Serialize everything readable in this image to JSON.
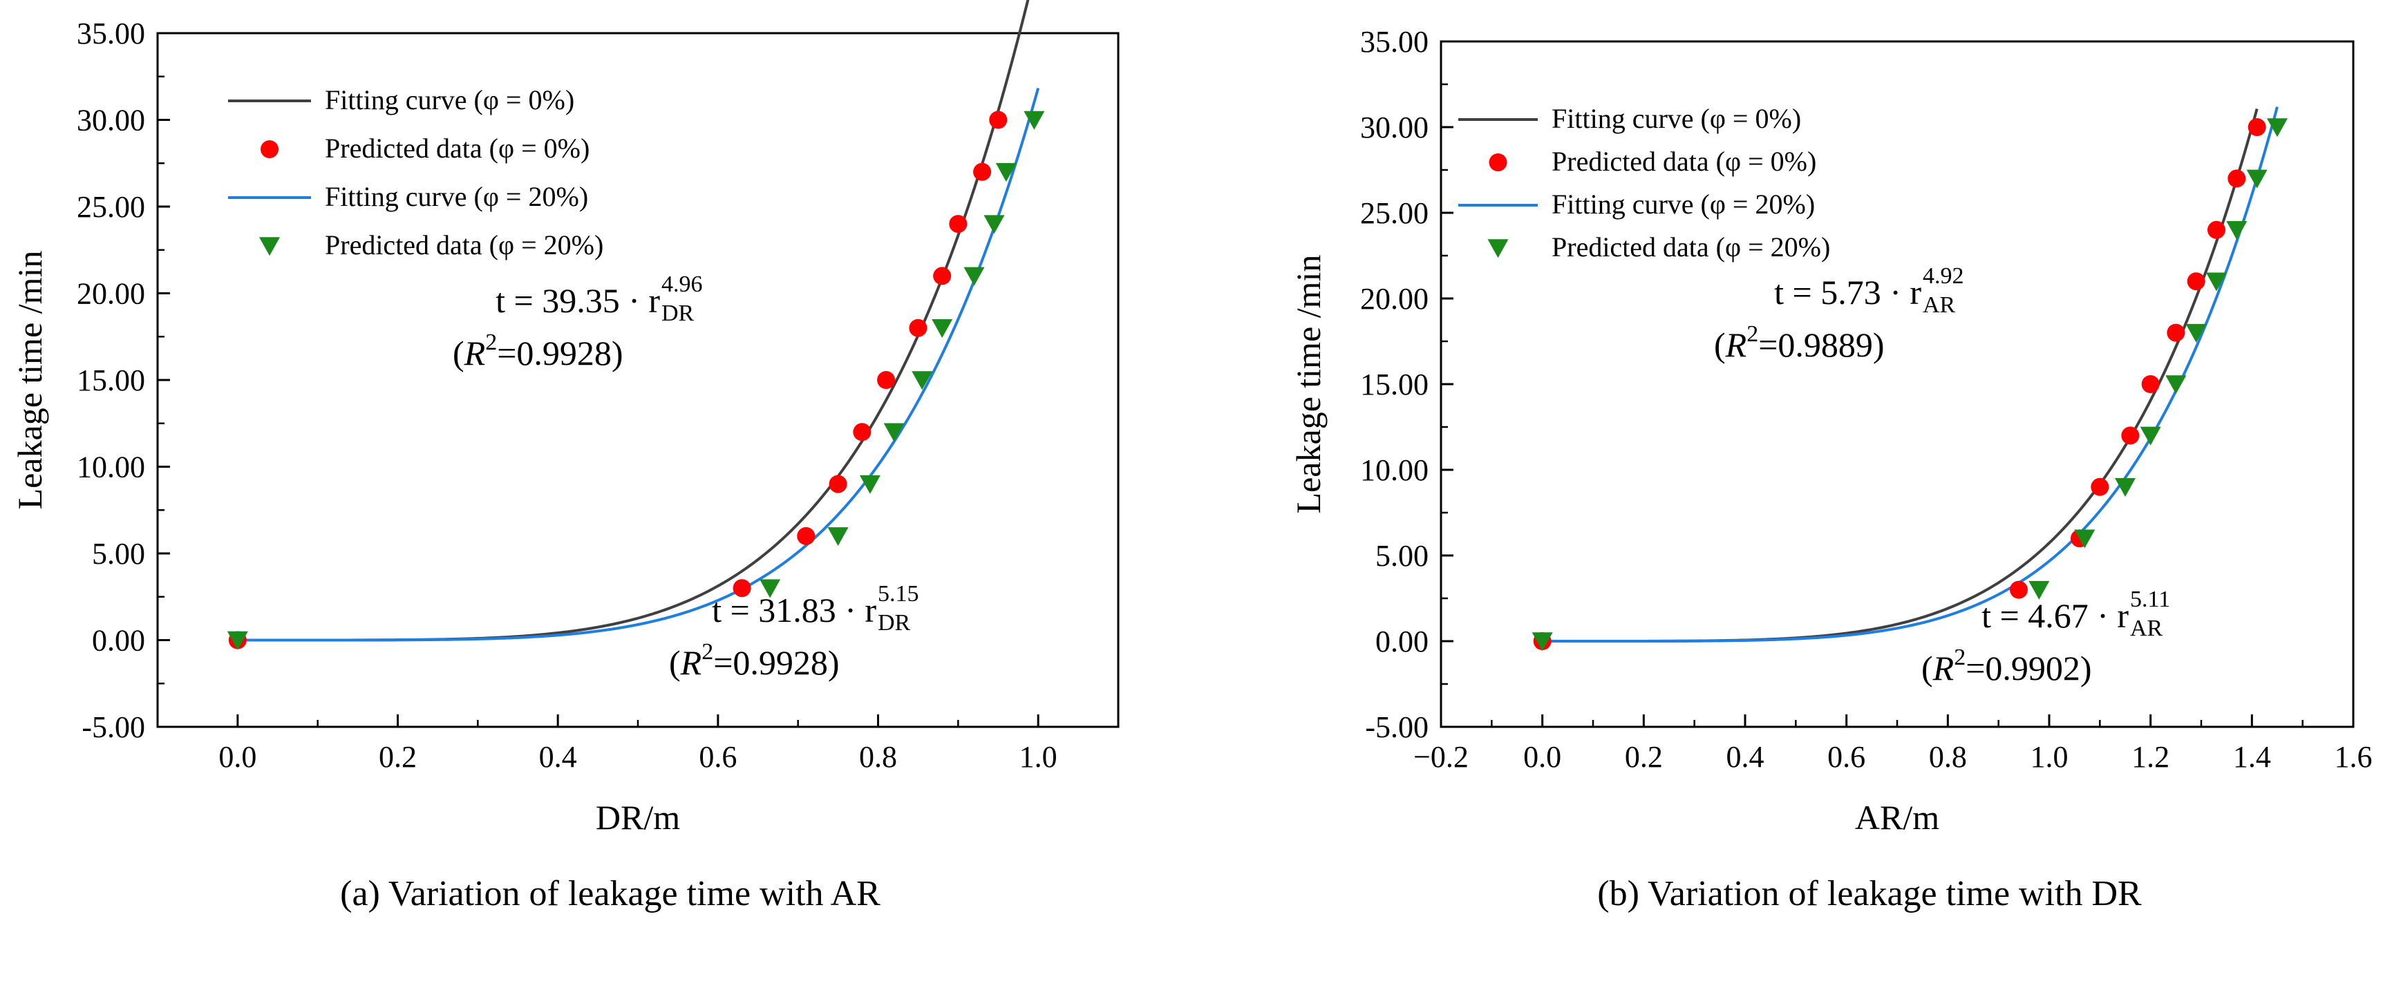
{
  "figure": {
    "captions": [
      "(a) Variation of leakage time with AR",
      "(b) Variation of leakage time with DR"
    ]
  },
  "colors": {
    "black_curve": "#404040",
    "blue_curve": "#1f7fe0",
    "red_marker": "#ff0000",
    "green_marker": "#1a8a1a"
  },
  "chart_data": [
    {
      "type": "scatter",
      "panel": "a",
      "caption": "(a) Variation of leakage time with AR",
      "xlabel": "DR/m",
      "ylabel": "Leakage time /min",
      "xlim": [
        -0.1,
        1.1
      ],
      "ylim": [
        -5,
        35
      ],
      "xticks": [
        0.0,
        0.2,
        0.4,
        0.6,
        0.8,
        1.0
      ],
      "xtick_labels": [
        "0.0",
        "0.2",
        "0.4",
        "0.6",
        "0.8",
        "1.0"
      ],
      "yticks": [
        -5,
        0,
        5,
        10,
        15,
        20,
        25,
        30,
        35
      ],
      "ytick_labels": [
        "-5.00",
        "0.00",
        "5.00",
        "10.00",
        "15.00",
        "20.00",
        "25.00",
        "30.00",
        "35.00"
      ],
      "legend": {
        "position": "top-left",
        "entries": [
          {
            "label": "Fitting curve (φ = 0%)",
            "kind": "line",
            "color": "#404040"
          },
          {
            "label": "Predicted data (φ = 0%)",
            "kind": "circle",
            "color": "#ff0000"
          },
          {
            "label": "Fitting curve (φ = 20%)",
            "kind": "line",
            "color": "#1f7fe0"
          },
          {
            "label": "Predicted data (φ = 20%)",
            "kind": "triangle",
            "color": "#1a8a1a"
          }
        ]
      },
      "curves": [
        {
          "name": "Fitting curve (φ = 0%)",
          "coef": 39.35,
          "exp": 4.96,
          "color": "#404040",
          "xmax": 0.995
        },
        {
          "name": "Fitting curve (φ = 20%)",
          "coef": 31.83,
          "exp": 5.15,
          "color": "#1f7fe0",
          "xmax": 1.0
        }
      ],
      "series": [
        {
          "name": "Predicted data (φ = 0%)",
          "marker": "circle",
          "color": "#ff0000",
          "x": [
            0.0,
            0.63,
            0.71,
            0.75,
            0.78,
            0.81,
            0.85,
            0.88,
            0.9,
            0.93,
            0.95
          ],
          "y": [
            0,
            3,
            6,
            9,
            12,
            15,
            18,
            21,
            24,
            27,
            30
          ]
        },
        {
          "name": "Predicted data (φ = 20%)",
          "marker": "triangle",
          "color": "#1a8a1a",
          "x": [
            0.0,
            0.665,
            0.75,
            0.79,
            0.82,
            0.855,
            0.88,
            0.92,
            0.945,
            0.96,
            0.995
          ],
          "y": [
            0,
            3,
            6,
            9,
            12,
            15,
            18,
            21,
            24,
            27,
            30
          ]
        }
      ],
      "equations": [
        {
          "lhs": "t = 39.35 · r",
          "sub": "DR",
          "sup": "4.96",
          "r2": "=0.9928",
          "position": "upper-middle"
        },
        {
          "lhs": "t = 31.83 · r",
          "sub": "DR",
          "sup": "5.15",
          "r2": "=0.9928",
          "position": "lower-right"
        }
      ]
    },
    {
      "type": "scatter",
      "panel": "b",
      "caption": "(b) Variation of leakage time with DR",
      "xlabel": "AR/m",
      "ylabel": "Leakage time /min",
      "xlim": [
        -0.2,
        1.6
      ],
      "ylim": [
        -5,
        35
      ],
      "xticks": [
        -0.2,
        0.0,
        0.2,
        0.4,
        0.6,
        0.8,
        1.0,
        1.2,
        1.4,
        1.6
      ],
      "xtick_labels": [
        "−0.2",
        "0.0",
        "0.2",
        "0.4",
        "0.6",
        "0.8",
        "1.0",
        "1.2",
        "1.4",
        "1.6"
      ],
      "yticks": [
        -5,
        0,
        5,
        10,
        15,
        20,
        25,
        30,
        35
      ],
      "ytick_labels": [
        "-5.00",
        "0.00",
        "5.00",
        "10.00",
        "15.00",
        "20.00",
        "25.00",
        "30.00",
        "35.00"
      ],
      "legend": {
        "position": "top-left",
        "entries": [
          {
            "label": "Fitting curve (φ = 0%)",
            "kind": "line",
            "color": "#404040"
          },
          {
            "label": "Predicted data (φ = 0%)",
            "kind": "circle",
            "color": "#ff0000"
          },
          {
            "label": "Fitting curve (φ = 20%)",
            "kind": "line",
            "color": "#1f7fe0"
          },
          {
            "label": "Predicted data (φ = 20%)",
            "kind": "triangle",
            "color": "#1a8a1a"
          }
        ]
      },
      "curves": [
        {
          "name": "Fitting curve (φ = 0%)",
          "coef": 5.73,
          "exp": 4.92,
          "color": "#404040",
          "xmax": 1.41
        },
        {
          "name": "Fitting curve (φ = 20%)",
          "coef": 4.67,
          "exp": 5.11,
          "color": "#1f7fe0",
          "xmax": 1.45
        }
      ],
      "series": [
        {
          "name": "Predicted data (φ = 0%)",
          "marker": "circle",
          "color": "#ff0000",
          "x": [
            0.0,
            0.94,
            1.06,
            1.1,
            1.16,
            1.2,
            1.25,
            1.29,
            1.33,
            1.37,
            1.41
          ],
          "y": [
            0,
            3,
            6,
            9,
            12,
            15,
            18,
            21,
            24,
            27,
            30
          ]
        },
        {
          "name": "Predicted data (φ = 20%)",
          "marker": "triangle",
          "color": "#1a8a1a",
          "x": [
            0.0,
            0.98,
            1.07,
            1.15,
            1.2,
            1.25,
            1.29,
            1.33,
            1.37,
            1.41,
            1.45
          ],
          "y": [
            0,
            3,
            6,
            9,
            12,
            15,
            18,
            21,
            24,
            27,
            30
          ]
        }
      ],
      "equations": [
        {
          "lhs": "t = 5.73 · r",
          "sub": "AR",
          "sup": "4.92",
          "r2": "=0.9889",
          "position": "upper-middle"
        },
        {
          "lhs": "t = 4.67 · r",
          "sub": "AR",
          "sup": "5.11",
          "r2": "=0.9902",
          "position": "lower-right"
        }
      ]
    }
  ]
}
